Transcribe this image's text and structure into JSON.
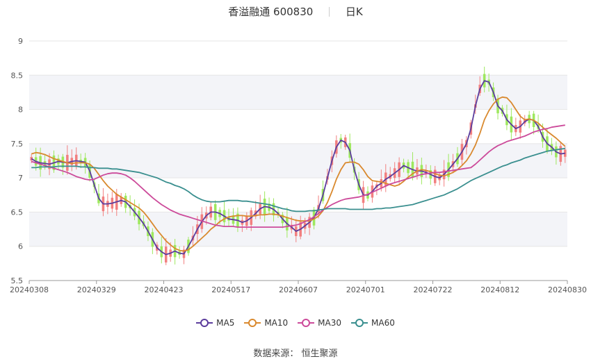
{
  "header": {
    "title": "香溢融通 600830",
    "period": "日K"
  },
  "source": {
    "text": "数据来源： 恒生聚源"
  },
  "colors": {
    "up": "#f28080",
    "down": "#9ee85e",
    "band": "#f3f4f8",
    "grid": "#e6e6e6",
    "axis": "#999999"
  },
  "chart_data": {
    "type": "candlestick",
    "title": "香溢融通 600830",
    "subtitle": "日K",
    "ylim": [
      5.5,
      9
    ],
    "yticks": [
      "5.5",
      "6",
      "6.5",
      "7",
      "7.5",
      "8",
      "8.5",
      "9"
    ],
    "xtick_labels": [
      "20240308",
      "20240329",
      "20240423",
      "20240517",
      "20240607",
      "20240701",
      "20240722",
      "20240812",
      "20240830"
    ],
    "grid": true,
    "legend_position": "bottom",
    "series": [
      {
        "name": "MA5",
        "color": "#5b3c9c",
        "values": [
          7.28,
          7.24,
          7.22,
          7.21,
          7.2,
          7.22,
          7.24,
          7.23,
          7.22,
          7.24,
          7.25,
          7.24,
          7.23,
          7.1,
          6.9,
          6.7,
          6.62,
          6.62,
          6.63,
          6.65,
          6.67,
          6.65,
          6.58,
          6.5,
          6.42,
          6.33,
          6.22,
          6.1,
          5.98,
          5.92,
          5.88,
          5.9,
          5.93,
          5.9,
          5.89,
          6.0,
          6.12,
          6.25,
          6.36,
          6.45,
          6.5,
          6.5,
          6.48,
          6.44,
          6.4,
          6.39,
          6.38,
          6.35,
          6.37,
          6.42,
          6.48,
          6.55,
          6.58,
          6.57,
          6.54,
          6.48,
          6.4,
          6.33,
          6.28,
          6.22,
          6.25,
          6.3,
          6.35,
          6.42,
          6.55,
          6.75,
          7.0,
          7.25,
          7.45,
          7.55,
          7.52,
          7.4,
          7.12,
          6.9,
          6.75,
          6.75,
          6.8,
          6.88,
          6.92,
          6.98,
          7.02,
          7.07,
          7.12,
          7.18,
          7.15,
          7.12,
          7.1,
          7.1,
          7.08,
          7.05,
          7.02,
          7.0,
          7.05,
          7.12,
          7.2,
          7.28,
          7.38,
          7.5,
          7.72,
          8.05,
          8.3,
          8.42,
          8.4,
          8.25,
          8.05,
          7.98,
          7.85,
          7.78,
          7.72,
          7.75,
          7.82,
          7.86,
          7.84,
          7.75,
          7.6,
          7.5,
          7.45,
          7.38,
          7.35,
          7.36
        ]
      },
      {
        "name": "MA10",
        "color": "#d9892e",
        "values": [
          7.35,
          7.37,
          7.36,
          7.34,
          7.31,
          7.28,
          7.26,
          7.24,
          7.22,
          7.21,
          7.22,
          7.22,
          7.22,
          7.2,
          7.14,
          7.05,
          6.96,
          6.88,
          6.82,
          6.76,
          6.72,
          6.68,
          6.64,
          6.6,
          6.56,
          6.5,
          6.42,
          6.33,
          6.24,
          6.16,
          6.08,
          6.02,
          5.97,
          5.94,
          5.93,
          5.95,
          6.0,
          6.06,
          6.12,
          6.18,
          6.25,
          6.3,
          6.36,
          6.4,
          6.43,
          6.44,
          6.45,
          6.45,
          6.44,
          6.44,
          6.45,
          6.46,
          6.46,
          6.47,
          6.47,
          6.46,
          6.44,
          6.42,
          6.4,
          6.38,
          6.37,
          6.37,
          6.37,
          6.4,
          6.44,
          6.52,
          6.64,
          6.8,
          6.98,
          7.12,
          7.22,
          7.23,
          7.23,
          7.2,
          7.12,
          7.02,
          6.96,
          6.95,
          6.94,
          6.92,
          6.9,
          6.88,
          6.9,
          6.95,
          7.01,
          7.06,
          7.1,
          7.12,
          7.11,
          7.09,
          7.06,
          7.04,
          7.03,
          7.05,
          7.08,
          7.12,
          7.18,
          7.25,
          7.35,
          7.48,
          7.65,
          7.85,
          7.98,
          8.08,
          8.15,
          8.18,
          8.17,
          8.1,
          8.0,
          7.9,
          7.85,
          7.86,
          7.84,
          7.8,
          7.74,
          7.68,
          7.63,
          7.58,
          7.52,
          7.46
        ]
      },
      {
        "name": "MA30",
        "color": "#cc4a9a",
        "values": [
          7.24,
          7.22,
          7.2,
          7.18,
          7.16,
          7.14,
          7.12,
          7.1,
          7.08,
          7.05,
          7.02,
          7.0,
          6.98,
          6.97,
          6.98,
          7.01,
          7.04,
          7.06,
          7.07,
          7.07,
          7.06,
          7.04,
          7.0,
          6.95,
          6.89,
          6.83,
          6.77,
          6.71,
          6.66,
          6.61,
          6.57,
          6.53,
          6.5,
          6.47,
          6.45,
          6.43,
          6.41,
          6.39,
          6.37,
          6.35,
          6.33,
          6.31,
          6.3,
          6.29,
          6.29,
          6.29,
          6.28,
          6.28,
          6.28,
          6.28,
          6.28,
          6.28,
          6.28,
          6.28,
          6.28,
          6.28,
          6.28,
          6.29,
          6.3,
          6.31,
          6.33,
          6.36,
          6.39,
          6.43,
          6.48,
          6.53,
          6.57,
          6.61,
          6.64,
          6.67,
          6.69,
          6.7,
          6.71,
          6.72,
          6.74,
          6.76,
          6.79,
          6.82,
          6.85,
          6.88,
          6.91,
          6.93,
          6.95,
          6.97,
          6.99,
          7.01,
          7.03,
          7.05,
          7.06,
          7.07,
          7.08,
          7.08,
          7.09,
          7.1,
          7.11,
          7.12,
          7.13,
          7.14,
          7.15,
          7.2,
          7.26,
          7.32,
          7.38,
          7.43,
          7.47,
          7.5,
          7.53,
          7.55,
          7.57,
          7.59,
          7.61,
          7.64,
          7.67,
          7.69,
          7.71,
          7.72,
          7.74,
          7.75,
          7.76,
          7.77
        ]
      },
      {
        "name": "MA60",
        "color": "#3a8f8f",
        "values": [
          7.15,
          7.15,
          7.16,
          7.16,
          7.16,
          7.16,
          7.17,
          7.17,
          7.17,
          7.17,
          7.17,
          7.16,
          7.16,
          7.15,
          7.15,
          7.14,
          7.14,
          7.14,
          7.13,
          7.13,
          7.12,
          7.11,
          7.1,
          7.09,
          7.08,
          7.06,
          7.04,
          7.02,
          7.0,
          6.97,
          6.94,
          6.92,
          6.89,
          6.87,
          6.84,
          6.8,
          6.75,
          6.71,
          6.68,
          6.66,
          6.65,
          6.65,
          6.65,
          6.66,
          6.67,
          6.67,
          6.67,
          6.66,
          6.66,
          6.65,
          6.64,
          6.63,
          6.62,
          6.61,
          6.59,
          6.57,
          6.55,
          6.54,
          6.52,
          6.51,
          6.51,
          6.51,
          6.52,
          6.52,
          6.53,
          6.54,
          6.55,
          6.55,
          6.55,
          6.55,
          6.55,
          6.54,
          6.54,
          6.54,
          6.54,
          6.54,
          6.54,
          6.55,
          6.55,
          6.56,
          6.56,
          6.57,
          6.58,
          6.59,
          6.6,
          6.61,
          6.63,
          6.65,
          6.67,
          6.69,
          6.71,
          6.73,
          6.75,
          6.78,
          6.81,
          6.84,
          6.88,
          6.92,
          6.96,
          6.99,
          7.02,
          7.05,
          7.08,
          7.11,
          7.14,
          7.17,
          7.19,
          7.22,
          7.24,
          7.26,
          7.29,
          7.31,
          7.33,
          7.35,
          7.37,
          7.39,
          7.4,
          7.41,
          7.42,
          7.43
        ]
      }
    ]
  }
}
